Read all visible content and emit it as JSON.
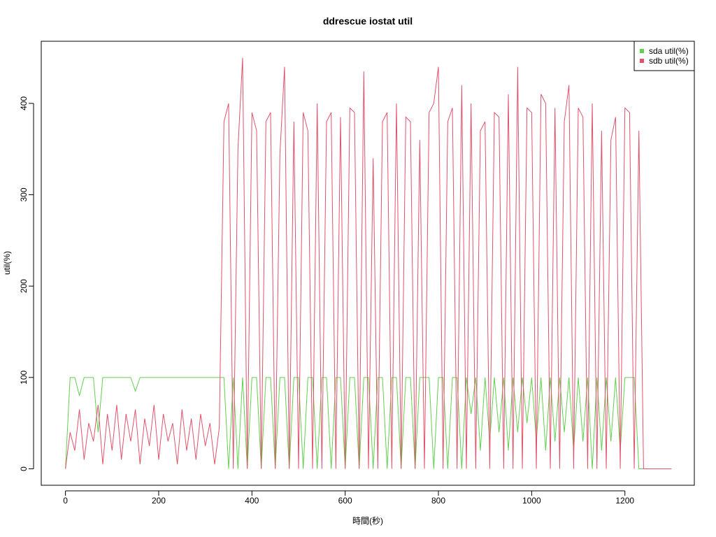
{
  "chart_data": {
    "type": "line",
    "title": "ddrescue iostat util",
    "x_label": "時間(秒)",
    "y_label": "util(%)",
    "x": [
      0,
      10,
      20,
      30,
      40,
      50,
      60,
      70,
      80,
      90,
      100,
      110,
      120,
      130,
      140,
      150,
      160,
      170,
      180,
      190,
      200,
      210,
      220,
      230,
      240,
      250,
      260,
      270,
      280,
      290,
      300,
      310,
      320,
      330,
      340,
      350,
      360,
      370,
      380,
      390,
      400,
      410,
      420,
      430,
      440,
      450,
      460,
      470,
      480,
      490,
      500,
      510,
      520,
      530,
      540,
      550,
      560,
      570,
      580,
      590,
      600,
      610,
      620,
      630,
      640,
      650,
      660,
      670,
      680,
      690,
      700,
      710,
      720,
      730,
      740,
      750,
      760,
      770,
      780,
      790,
      800,
      810,
      820,
      830,
      840,
      850,
      860,
      870,
      880,
      890,
      900,
      910,
      920,
      930,
      940,
      950,
      960,
      970,
      980,
      990,
      1000,
      1010,
      1020,
      1030,
      1040,
      1050,
      1060,
      1070,
      1080,
      1090,
      1100,
      1110,
      1120,
      1130,
      1140,
      1150,
      1160,
      1170,
      1180,
      1190,
      1200,
      1210,
      1220,
      1230,
      1240,
      1250,
      1260,
      1270,
      1280,
      1290,
      1300
    ],
    "series": [
      {
        "name": "sda util(%)",
        "color": "#61D04F",
        "values": [
          0,
          100,
          100,
          80,
          100,
          100,
          100,
          40,
          100,
          100,
          100,
          100,
          100,
          100,
          100,
          85,
          100,
          100,
          100,
          100,
          100,
          100,
          100,
          100,
          100,
          100,
          100,
          100,
          100,
          100,
          100,
          100,
          100,
          100,
          100,
          0,
          100,
          0,
          100,
          0,
          100,
          100,
          0,
          100,
          100,
          0,
          100,
          100,
          0,
          100,
          100,
          0,
          100,
          100,
          0,
          100,
          100,
          0,
          100,
          100,
          0,
          100,
          100,
          0,
          100,
          100,
          0,
          100,
          100,
          0,
          100,
          100,
          0,
          100,
          100,
          0,
          100,
          100,
          100,
          0,
          100,
          100,
          0,
          100,
          100,
          0,
          100,
          60,
          100,
          20,
          100,
          30,
          100,
          40,
          100,
          20,
          100,
          40,
          100,
          50,
          100,
          30,
          100,
          20,
          100,
          30,
          100,
          40,
          100,
          20,
          100,
          30,
          100,
          0,
          100,
          20,
          100,
          30,
          100,
          20,
          100,
          100,
          100,
          0,
          0,
          0,
          0,
          0,
          0,
          0,
          0
        ]
      },
      {
        "name": "sdb util(%)",
        "color": "#DF536B",
        "values": [
          0,
          40,
          20,
          65,
          10,
          50,
          30,
          70,
          5,
          60,
          20,
          70,
          10,
          60,
          30,
          65,
          5,
          55,
          25,
          70,
          10,
          60,
          30,
          50,
          5,
          65,
          20,
          55,
          10,
          60,
          25,
          50,
          5,
          45,
          380,
          400,
          0,
          350,
          450,
          0,
          390,
          370,
          0,
          380,
          390,
          0,
          345,
          440,
          0,
          380,
          0,
          390,
          370,
          0,
          400,
          0,
          380,
          390,
          0,
          385,
          0,
          395,
          390,
          0,
          435,
          0,
          340,
          0,
          380,
          390,
          0,
          400,
          0,
          385,
          380,
          0,
          360,
          0,
          390,
          400,
          440,
          0,
          380,
          395,
          0,
          420,
          0,
          400,
          0,
          370,
          380,
          0,
          390,
          385,
          0,
          410,
          0,
          440,
          0,
          395,
          390,
          0,
          410,
          400,
          0,
          395,
          0,
          380,
          420,
          0,
          395,
          385,
          0,
          400,
          0,
          370,
          0,
          360,
          385,
          0,
          395,
          390,
          0,
          370,
          0,
          0,
          0,
          0,
          0,
          0,
          0
        ]
      }
    ],
    "xlim": [
      -51.9,
      1348.9
    ],
    "ylim": [
      -18,
      468
    ],
    "xticks": [
      0,
      200,
      400,
      600,
      800,
      1000,
      1200
    ],
    "yticks": [
      0,
      100,
      200,
      300,
      400
    ],
    "legend": "top-right"
  }
}
